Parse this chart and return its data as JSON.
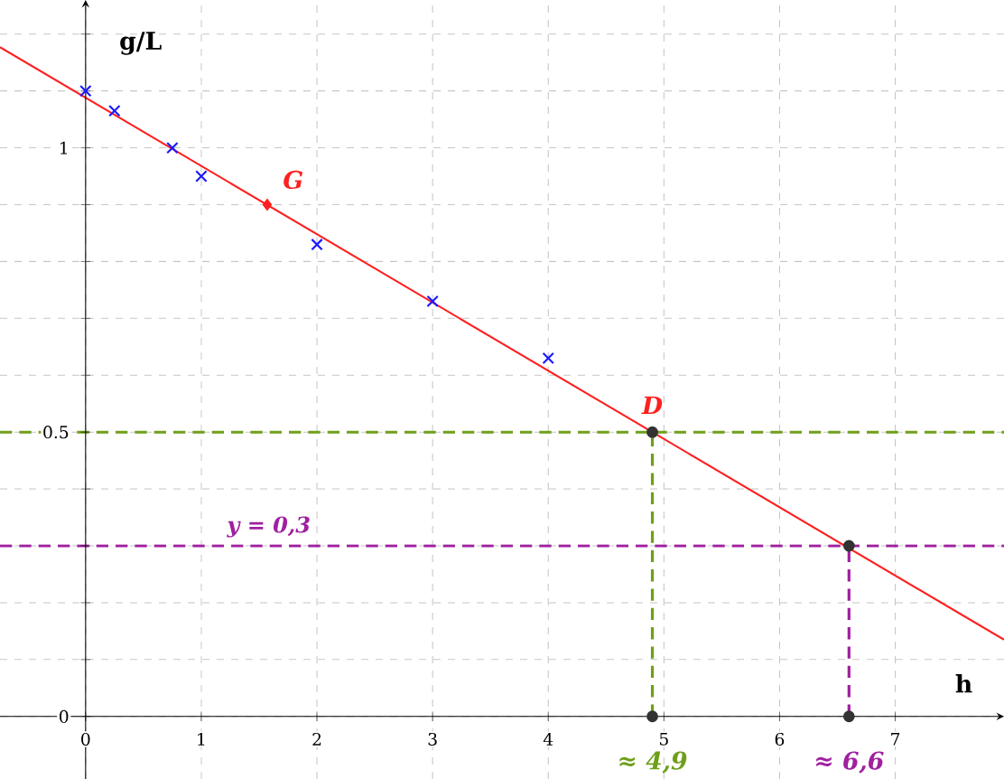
{
  "chart_data": {
    "type": "scatter",
    "xlabel": "h",
    "ylabel": "g/L",
    "xlim": [
      -0.74,
      7.94
    ],
    "ylim": [
      -0.11,
      1.26
    ],
    "xticks": [
      0,
      1,
      2,
      3,
      4,
      5,
      6,
      7
    ],
    "yticks": [
      0,
      {
        "value": 0.1,
        "label": null
      },
      {
        "value": 0.2,
        "label": null
      },
      {
        "value": 0.3,
        "label": null
      },
      {
        "value": 0.4,
        "label": null
      },
      0.5,
      {
        "value": 0.6,
        "label": null
      },
      {
        "value": 0.7,
        "label": null
      },
      {
        "value": 0.8,
        "label": null
      },
      {
        "value": 0.9,
        "label": null
      },
      1,
      {
        "value": 1.1,
        "label": null
      },
      {
        "value": 1.2,
        "label": null
      }
    ],
    "grid": true,
    "series": [
      {
        "type": "line",
        "color": "#ff2020",
        "marker": "none",
        "line_style": "solid",
        "x": [
          -0.74,
          4.9,
          7.94
        ],
        "values": [
          1.177,
          0.5,
          0.135
        ]
      },
      {
        "color": "#1a1aff",
        "marker": "cross",
        "x": [
          0,
          0.25,
          0.75,
          1,
          2,
          3,
          4
        ],
        "values": [
          1.1,
          1.065,
          1.0,
          0.95,
          0.83,
          0.73,
          0.63
        ]
      },
      {
        "color": "#ff2020",
        "marker": "diamond",
        "x": [
          1.57
        ],
        "values": [
          0.9
        ]
      },
      {
        "type": "line",
        "color": "#6f9f1a",
        "marker": "none",
        "line_style": "dashed",
        "x": [
          4.9,
          4.9
        ],
        "values": [
          0,
          0.5
        ]
      },
      {
        "type": "line",
        "color": "#a020a0",
        "marker": "none",
        "line_style": "dashed",
        "x": [
          6.6,
          6.6
        ],
        "values": [
          0,
          0.3
        ]
      },
      {
        "color": "#333333",
        "marker": "circle",
        "x": [
          4.9,
          4.9,
          6.6,
          6.6
        ],
        "values": [
          0.5,
          0,
          0.3,
          0
        ]
      }
    ],
    "ref_lines": [
      {
        "axis": "y",
        "value": 0.5,
        "color": "#6f9f1a",
        "line_style": "dashed"
      },
      {
        "axis": "y",
        "value": 0.3,
        "color": "#a020a0",
        "line_style": "dashed",
        "label": "y = 0,3"
      }
    ],
    "annotations": [
      {
        "text": "G",
        "x": 1.57,
        "y": 0.9
      },
      {
        "text": "D",
        "x": 4.9,
        "y": 0.5
      },
      {
        "text": "≈ 4,9",
        "x": 4.9,
        "y": 0
      },
      {
        "text": "≈ 6,6",
        "x": 6.6,
        "y": 0
      }
    ]
  }
}
